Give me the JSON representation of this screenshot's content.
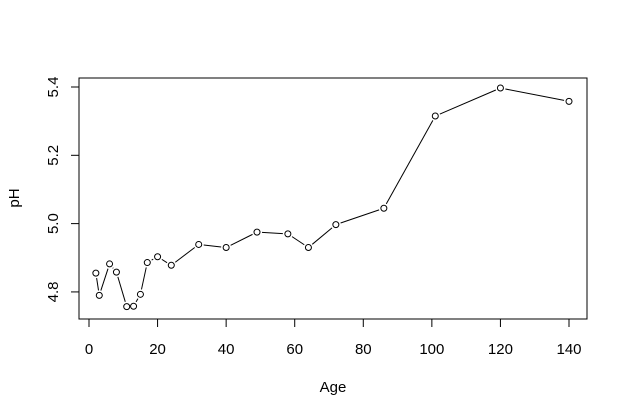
{
  "chart_data": {
    "type": "line",
    "title": "",
    "xlabel": "Age",
    "ylabel": "pH",
    "xlim": [
      0,
      140
    ],
    "ylim": [
      4.75,
      5.4
    ],
    "xticks": [
      0,
      20,
      40,
      60,
      80,
      100,
      120,
      140
    ],
    "yticks": [
      4.8,
      5.0,
      5.2,
      5.4
    ],
    "grid": false,
    "style": {
      "line_color": "#000000",
      "marker": "open-circle",
      "marker_fill": "#ffffff",
      "marker_stroke": "#000000"
    },
    "series": [
      {
        "x": [
          2,
          3,
          6,
          8,
          11,
          13,
          15,
          17,
          20,
          24,
          32,
          40,
          49,
          58,
          64,
          72,
          86,
          101,
          120,
          140
        ],
        "y": [
          4.855,
          4.79,
          4.882,
          4.858,
          4.757,
          4.758,
          4.793,
          4.886,
          4.903,
          4.878,
          4.939,
          4.93,
          4.975,
          4.97,
          4.93,
          4.997,
          5.045,
          5.315,
          5.397,
          5.358
        ]
      }
    ]
  }
}
